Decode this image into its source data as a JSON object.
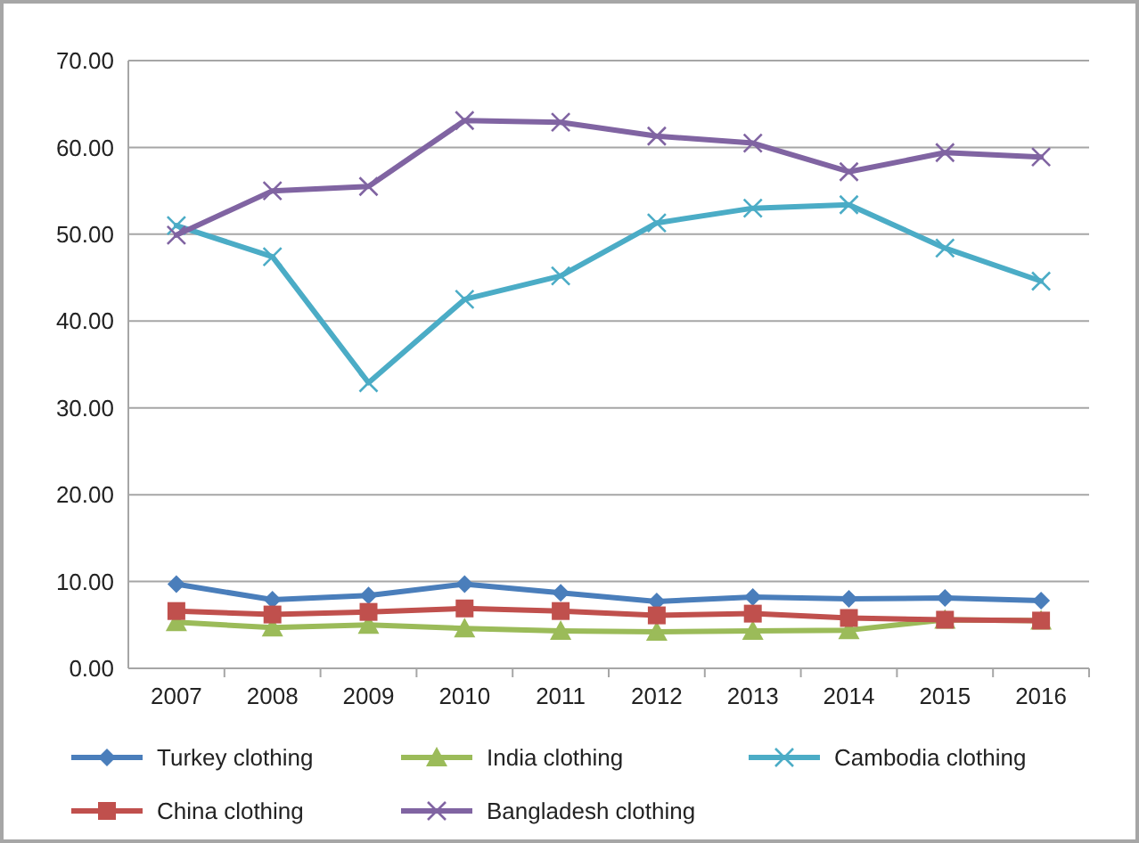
{
  "chart_data": {
    "type": "line",
    "categories": [
      "2007",
      "2008",
      "2009",
      "2010",
      "2011",
      "2012",
      "2013",
      "2014",
      "2015",
      "2016"
    ],
    "series": [
      {
        "name": "Turkey clothing",
        "color": "#4a7ebb",
        "marker": "diamond",
        "values": [
          9.7,
          7.9,
          8.4,
          9.7,
          8.7,
          7.7,
          8.2,
          8.0,
          8.1,
          7.8
        ]
      },
      {
        "name": "India clothing",
        "color": "#9bbb59",
        "marker": "triangle",
        "values": [
          5.3,
          4.7,
          5.0,
          4.6,
          4.3,
          4.2,
          4.3,
          4.4,
          5.6,
          5.5
        ]
      },
      {
        "name": "Cambodia clothing",
        "color": "#4bacc6",
        "marker": "cross",
        "values": [
          51.0,
          47.4,
          32.9,
          42.5,
          45.2,
          51.3,
          53.0,
          53.4,
          48.4,
          44.6
        ]
      },
      {
        "name": "China clothing",
        "color": "#c0504d",
        "marker": "square",
        "values": [
          6.6,
          6.2,
          6.5,
          6.9,
          6.6,
          6.1,
          6.3,
          5.8,
          5.6,
          5.5
        ]
      },
      {
        "name": "Bangladesh clothing",
        "color": "#8064a2",
        "marker": "cross",
        "values": [
          49.9,
          55.0,
          55.5,
          63.1,
          62.9,
          61.3,
          60.5,
          57.2,
          59.4,
          58.9
        ]
      }
    ],
    "ylim": [
      0,
      70
    ],
    "yticks": [
      {
        "value": 0,
        "label": "0.00"
      },
      {
        "value": 10,
        "label": "10.00"
      },
      {
        "value": 20,
        "label": "20.00"
      },
      {
        "value": 30,
        "label": "30.00"
      },
      {
        "value": 40,
        "label": "40.00"
      },
      {
        "value": 50,
        "label": "50.00"
      },
      {
        "value": 60,
        "label": "60.00"
      },
      {
        "value": 70,
        "label": "70.00"
      }
    ],
    "grid": "y",
    "legend": "bottom",
    "line_style": "solid"
  }
}
